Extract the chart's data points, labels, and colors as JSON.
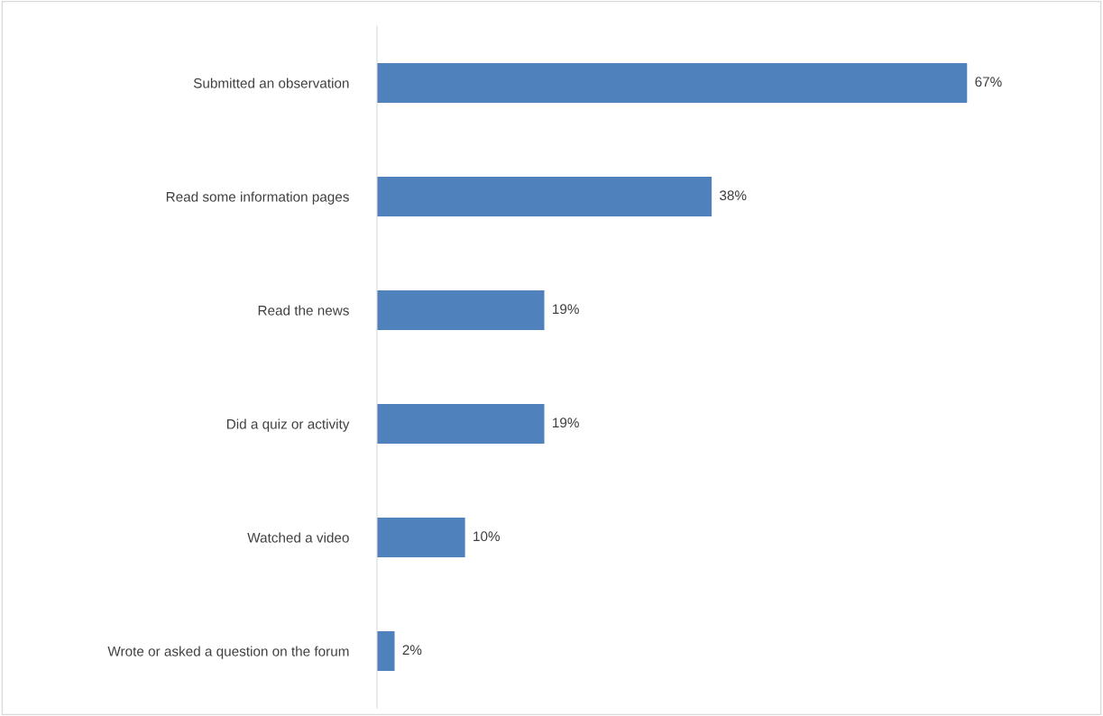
{
  "chart_data": {
    "type": "bar",
    "orientation": "horizontal",
    "categories": [
      "Submitted an observation",
      "Read some information pages",
      "Read the news",
      "Did a quiz or activity",
      "Watched a video",
      "Wrote or asked a question on the forum"
    ],
    "values": [
      67,
      38,
      19,
      19,
      10,
      2
    ],
    "value_labels": [
      "67%",
      "38%",
      "19%",
      "19%",
      "10%",
      "2%"
    ],
    "color": "#4f81bd",
    "tick_labels": "y",
    "grid": false,
    "legend": false
  }
}
